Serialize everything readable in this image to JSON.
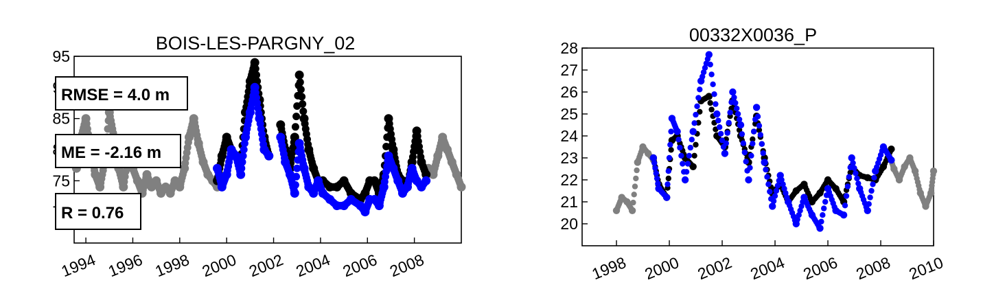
{
  "chart_data": [
    {
      "type": "scatter",
      "title": "BOIS-LES-PARGNY_02",
      "xlabel": "",
      "ylabel": "",
      "xlim": [
        1993.5,
        2010.0
      ],
      "ylim": [
        65,
        95
      ],
      "x_ticks": [
        "1994",
        "1996",
        "1998",
        "2000",
        "2002",
        "2004",
        "2006",
        "2008"
      ],
      "x_tick_values": [
        1994,
        1996,
        1998,
        2000,
        2002,
        2004,
        2006,
        2008
      ],
      "y_ticks": [
        "70",
        "75",
        "80",
        "85",
        "90",
        "95"
      ],
      "y_tick_values": [
        70,
        75,
        80,
        85,
        90,
        95
      ],
      "annotations": [
        "RMSE = 4.0 m",
        "ME = -2.16 m",
        "R = 0.76"
      ],
      "colors": {
        "grey": "#808080",
        "black": "#000000",
        "blue": "#0000ff"
      },
      "series": [
        {
          "color": "grey",
          "x": [
            1993.6,
            1993.8,
            1994.0,
            1994.2,
            1994.4,
            1994.6,
            1994.8,
            1995.0,
            1995.2,
            1995.4,
            1995.6,
            1995.8,
            1996.0,
            1996.2,
            1996.4,
            1996.6,
            1996.8,
            1997.0,
            1997.2,
            1997.4,
            1997.6,
            1997.8,
            1998.0,
            1998.2,
            1998.4,
            1998.6,
            1998.8,
            1999.0,
            1999.2,
            1999.4,
            1999.6,
            2008.6,
            2008.8,
            2009.0,
            2009.2,
            2009.4,
            2009.6,
            2009.8,
            2010.0
          ],
          "y": [
            77,
            82,
            85,
            80,
            76,
            74,
            78,
            86,
            82,
            77,
            74,
            79,
            77,
            75,
            73,
            76,
            74,
            75,
            73,
            74,
            73,
            75,
            74,
            77,
            82,
            85,
            81,
            78,
            76,
            75,
            74,
            77,
            76,
            79,
            82,
            80,
            78,
            76,
            74
          ]
        },
        {
          "color": "black",
          "x": [
            1999.6,
            1999.8,
            2000.0,
            2000.2,
            2000.4,
            2000.6,
            2000.8,
            2001.0,
            2001.2,
            2001.4,
            2001.6,
            2001.8,
            2002.3,
            2002.5,
            2002.7,
            2002.9,
            2003.1,
            2003.3,
            2003.5,
            2003.7,
            2003.9,
            2004.1,
            2004.4,
            2004.7,
            2005.0,
            2005.3,
            2005.7,
            2005.9,
            2006.1,
            2006.3,
            2006.5,
            2006.7,
            2006.9,
            2007.1,
            2007.3,
            2007.5,
            2007.7,
            2007.9,
            2008.1,
            2008.3,
            2008.5
          ],
          "y": [
            75,
            79,
            82,
            80,
            79,
            78,
            86,
            91,
            94,
            88,
            82,
            79,
            84,
            80,
            77,
            82,
            92,
            85,
            80,
            77,
            75,
            75,
            74,
            74,
            75,
            73,
            72,
            73,
            75,
            75,
            73,
            76,
            85,
            80,
            76,
            75,
            74,
            78,
            83,
            78,
            76
          ]
        },
        {
          "color": "blue",
          "x": [
            1999.6,
            1999.8,
            2000.0,
            2000.2,
            2000.4,
            2000.6,
            2000.8,
            2001.0,
            2001.2,
            2001.4,
            2001.6,
            2001.8,
            2002.3,
            2002.5,
            2002.7,
            2002.9,
            2003.1,
            2003.3,
            2003.5,
            2003.7,
            2003.9,
            2004.1,
            2004.4,
            2004.7,
            2005.0,
            2005.3,
            2005.7,
            2005.9,
            2006.1,
            2006.3,
            2006.5,
            2006.7,
            2006.9,
            2007.1,
            2007.3,
            2007.5,
            2007.7,
            2007.9,
            2008.1,
            2008.3,
            2008.5
          ],
          "y": [
            77,
            74,
            76,
            80,
            79,
            76,
            82,
            86,
            90,
            85,
            80,
            79,
            82,
            78,
            76,
            73,
            81,
            77,
            74,
            73,
            75,
            73,
            72,
            71,
            71,
            72,
            71,
            70,
            72,
            72,
            71,
            74,
            79,
            77,
            75,
            73,
            74,
            77,
            75,
            74,
            75
          ]
        }
      ]
    },
    {
      "type": "scatter",
      "title": "00332X0036_P",
      "xlabel": "",
      "ylabel": "",
      "xlim": [
        1996.7,
        2010.0
      ],
      "ylim": [
        19,
        28
      ],
      "x_ticks": [
        "1998",
        "2000",
        "2002",
        "2004",
        "2006",
        "2008",
        "2010"
      ],
      "x_tick_values": [
        1998,
        2000,
        2002,
        2004,
        2006,
        2008,
        2010
      ],
      "y_ticks": [
        "20",
        "21",
        "22",
        "23",
        "24",
        "25",
        "26",
        "27",
        "28"
      ],
      "y_tick_values": [
        20,
        21,
        22,
        23,
        24,
        25,
        26,
        27,
        28
      ],
      "series": [
        {
          "color": "grey",
          "x": [
            1998.0,
            1998.2,
            1998.4,
            1998.6,
            1998.8,
            1999.0,
            1999.2,
            1999.4,
            2008.3,
            2008.5,
            2008.7,
            2008.9,
            2009.1,
            2009.3,
            2009.5,
            2009.7,
            2009.9,
            2010.0
          ],
          "y": [
            20.6,
            21.2,
            21.0,
            20.6,
            22.8,
            23.5,
            23.2,
            22.9,
            23.2,
            22.5,
            22.0,
            22.6,
            23.0,
            22.4,
            21.4,
            20.8,
            21.4,
            22.4
          ]
        },
        {
          "color": "black",
          "x": [
            1999.4,
            1999.6,
            1999.9,
            2000.1,
            2000.3,
            2000.6,
            2000.9,
            2001.2,
            2001.5,
            2001.8,
            2002.1,
            2002.4,
            2002.7,
            2003.0,
            2003.3,
            2003.6,
            2003.9,
            2004.2,
            2004.5,
            2004.8,
            2005.1,
            2005.4,
            2005.7,
            2006.0,
            2006.3,
            2006.6,
            2006.9,
            2007.2,
            2007.5,
            2007.8,
            2008.1,
            2008.4
          ],
          "y": [
            23.0,
            21.8,
            21.2,
            23.8,
            24.0,
            23.0,
            22.6,
            25.6,
            25.8,
            24.0,
            23.5,
            25.6,
            24.0,
            22.8,
            24.9,
            23.0,
            21.4,
            21.8,
            21.0,
            21.5,
            21.8,
            21.0,
            21.4,
            22.0,
            21.6,
            21.0,
            22.6,
            22.2,
            22.1,
            22.0,
            22.6,
            23.4
          ]
        },
        {
          "color": "blue",
          "x": [
            1999.4,
            1999.6,
            1999.9,
            2000.1,
            2000.3,
            2000.6,
            2000.9,
            2001.2,
            2001.5,
            2001.8,
            2002.1,
            2002.4,
            2002.7,
            2003.0,
            2003.3,
            2003.6,
            2003.9,
            2004.2,
            2004.5,
            2004.8,
            2005.1,
            2005.4,
            2005.7,
            2006.0,
            2006.3,
            2006.6,
            2006.9,
            2007.2,
            2007.5,
            2007.8,
            2008.1,
            2008.4
          ],
          "y": [
            23.0,
            21.6,
            21.2,
            24.8,
            24.2,
            22.0,
            24.2,
            26.5,
            27.7,
            25.0,
            23.2,
            26.0,
            24.5,
            22.0,
            25.3,
            22.8,
            20.8,
            22.2,
            21.0,
            20.0,
            21.2,
            20.4,
            19.8,
            21.6,
            20.6,
            20.4,
            23.0,
            21.6,
            20.6,
            22.4,
            23.5,
            22.9
          ]
        }
      ]
    }
  ]
}
